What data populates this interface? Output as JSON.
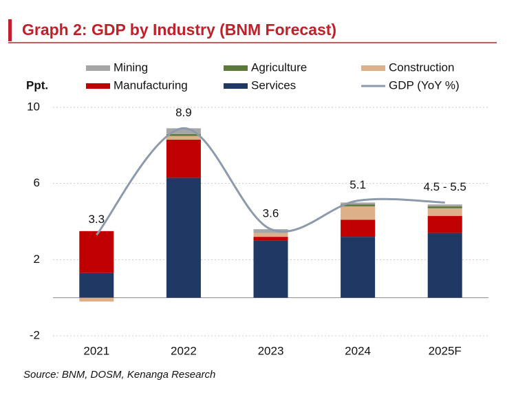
{
  "chart_data": {
    "type": "bar",
    "stacked": true,
    "title": "Graph 2: GDP by Industry (BNM Forecast)",
    "y_label": "Ppt.",
    "source": "Source: BNM, DOSM, Kenanga Research",
    "categories": [
      "2021",
      "2022",
      "2023",
      "2024",
      "2025F"
    ],
    "ylim": [
      -2,
      10
    ],
    "yticks": [
      10,
      6,
      2,
      -2
    ],
    "grid": true,
    "series": [
      {
        "name": "Mining",
        "color": "#a6a6a6",
        "values": [
          0,
          0.3,
          0.2,
          0.1,
          0.1
        ]
      },
      {
        "name": "Agriculture",
        "color": "#5b7a3a",
        "values": [
          0,
          0.1,
          0,
          0.1,
          0.1
        ]
      },
      {
        "name": "Construction",
        "color": "#ddb089",
        "values": [
          -0.2,
          0.2,
          0.2,
          0.7,
          0.4
        ]
      },
      {
        "name": "Manufacturing",
        "color": "#c00000",
        "values": [
          2.2,
          2.0,
          0.2,
          0.9,
          0.9
        ]
      },
      {
        "name": "Services",
        "color": "#1f3864",
        "values": [
          1.3,
          6.3,
          3.0,
          3.2,
          3.4
        ]
      },
      {
        "name": "GDP (YoY %)",
        "color": "#8c9aab",
        "type": "line",
        "values": [
          3.3,
          8.9,
          3.6,
          5.1,
          5.0
        ],
        "value_labels": [
          "3.3",
          "8.9",
          "3.6",
          "5.1",
          "4.5 - 5.5"
        ]
      }
    ]
  }
}
